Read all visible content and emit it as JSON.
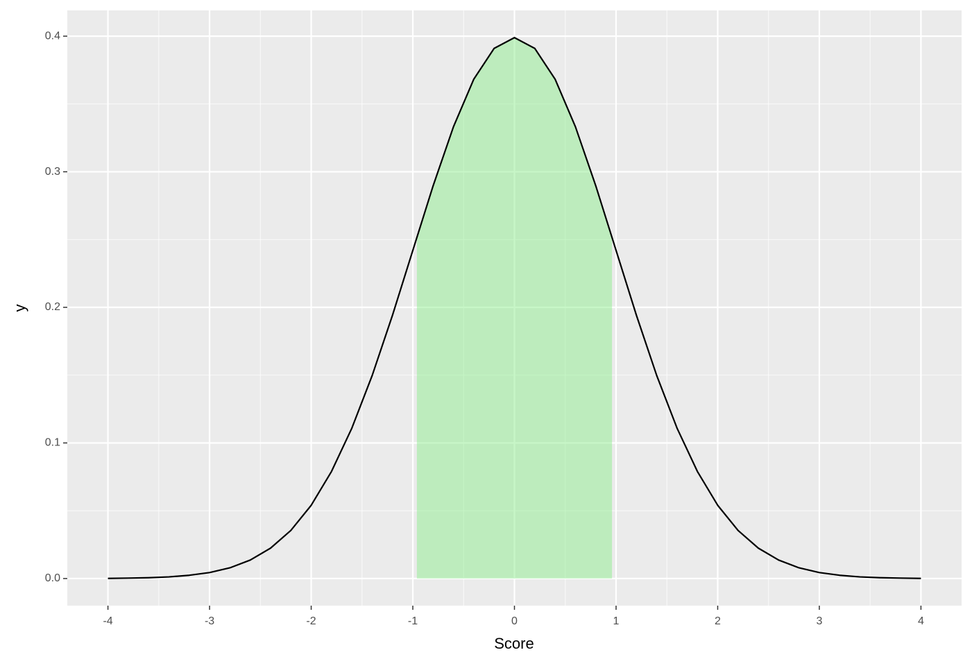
{
  "chart_data": {
    "type": "line",
    "x_label": "Score",
    "y_label": "y",
    "xlim": [
      -4.4,
      4.4
    ],
    "ylim": [
      -0.02,
      0.419
    ],
    "xticks": [
      -4,
      -3,
      -2,
      -1,
      0,
      1,
      2,
      3,
      4
    ],
    "yticks": [
      {
        "value": 0,
        "label": "0.0"
      },
      {
        "value": 0.1,
        "label": "0.1"
      },
      {
        "value": 0.2,
        "label": "0.2"
      },
      {
        "value": 0.3,
        "label": "0.3"
      },
      {
        "value": 0.4,
        "label": "0.4"
      }
    ],
    "grid": true,
    "series": [
      {
        "color": "#90ee90",
        "opacity": 0.5,
        "fill": true,
        "x": [
          -0.96,
          -0.8,
          -0.6,
          -0.4,
          -0.2,
          0,
          0.2,
          0.4,
          0.6,
          0.8,
          0.96
        ],
        "values": [
          0.2516,
          0.2897,
          0.3332,
          0.3683,
          0.391,
          0.3989,
          0.391,
          0.3683,
          0.3332,
          0.2897,
          0.2516
        ]
      },
      {
        "color": "#000000",
        "fill": false,
        "x": [
          -4,
          -3.8,
          -3.6,
          -3.4,
          -3.2,
          -3,
          -2.8,
          -2.6,
          -2.4,
          -2.2,
          -2,
          -1.8,
          -1.6,
          -1.4,
          -1.2,
          -1,
          -0.8,
          -0.6,
          -0.4,
          -0.2,
          0,
          0.2,
          0.4,
          0.6,
          0.8,
          1,
          1.2,
          1.4,
          1.6,
          1.8,
          2,
          2.2,
          2.4,
          2.6,
          2.8,
          3,
          3.2,
          3.4,
          3.6,
          3.8,
          4
        ],
        "values": [
          0.0001,
          0.0003,
          0.0006,
          0.0012,
          0.0024,
          0.0044,
          0.0079,
          0.0136,
          0.0224,
          0.0355,
          0.054,
          0.079,
          0.1109,
          0.1497,
          0.1942,
          0.242,
          0.2897,
          0.3332,
          0.3683,
          0.391,
          0.3989,
          0.391,
          0.3683,
          0.3332,
          0.2897,
          0.242,
          0.1942,
          0.1497,
          0.1109,
          0.079,
          0.054,
          0.0355,
          0.0224,
          0.0136,
          0.0079,
          0.0044,
          0.0024,
          0.0012,
          0.0006,
          0.0003,
          0.0001
        ]
      }
    ]
  }
}
